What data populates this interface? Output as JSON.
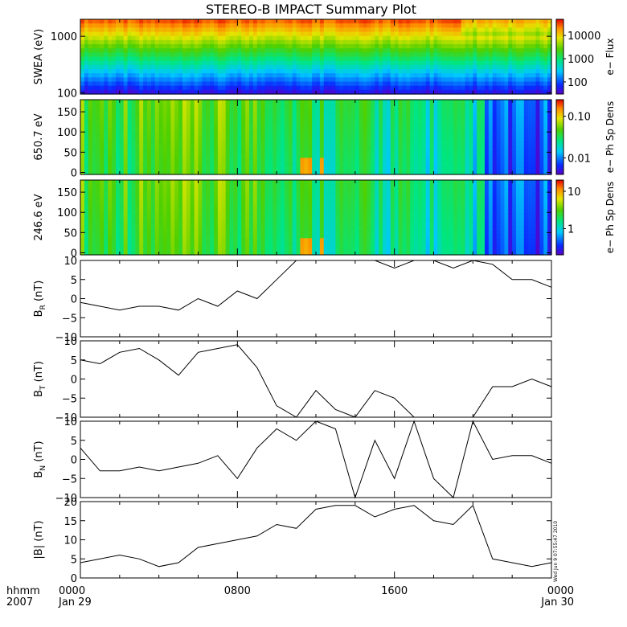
{
  "title": "STEREO-B IMPACT Summary Plot",
  "stamp": "Wed Jun 9 07:55:47 2010",
  "time_axis": {
    "row1": [
      "0000",
      "0800",
      "1600",
      "0000"
    ],
    "row2": [
      "Jan 29",
      "",
      "",
      "Jan 30"
    ],
    "corner": [
      "hhmm",
      "2007"
    ]
  },
  "chart_data": [
    {
      "id": "swea",
      "type": "heatmap",
      "ylabel": "SWEA (eV)",
      "yscale": "log",
      "ylim": [
        95,
        2000
      ],
      "yticks": [
        100,
        1000
      ],
      "yticklabels": [
        "100",
        "1000"
      ],
      "colorbar": {
        "label": "e− Flux",
        "scale": "log",
        "range": [
          30,
          50000
        ],
        "ticks": [
          100,
          1000,
          10000
        ],
        "ticklabels": [
          "100",
          "1000",
          "10000"
        ]
      }
    },
    {
      "id": "pad650",
      "type": "heatmap",
      "ylabel": "650.7 eV",
      "ylim": [
        -5,
        180
      ],
      "yticks": [
        0,
        50,
        100,
        150
      ],
      "yticklabels": [
        "0",
        "50",
        "100",
        "150"
      ],
      "colorbar": {
        "label": "e− Ph Sp Dens",
        "scale": "log",
        "range": [
          0.004,
          0.25
        ],
        "ticks": [
          0.01,
          0.1
        ],
        "ticklabels": [
          "0.01",
          "0.10"
        ]
      }
    },
    {
      "id": "pad246",
      "type": "heatmap",
      "ylabel": "246.6 eV",
      "ylim": [
        -5,
        180
      ],
      "yticks": [
        0,
        50,
        100,
        150
      ],
      "yticklabels": [
        "0",
        "50",
        "100",
        "150"
      ],
      "colorbar": {
        "label": "e− Ph Sp Dens",
        "scale": "log",
        "range": [
          0.2,
          20
        ],
        "ticks": [
          1,
          10
        ],
        "ticklabels": [
          "1",
          "10"
        ]
      }
    },
    {
      "id": "br",
      "type": "line",
      "ylabel_main": "B",
      "ylabel_sub": "R",
      "ylabel_unit": " (nT)",
      "ylim": [
        -10,
        10
      ],
      "yticks": [
        -10,
        -5,
        0,
        5,
        10
      ],
      "yticklabels": [
        "−10",
        "−5",
        "0",
        "5",
        "10"
      ],
      "x": [
        0,
        1,
        2,
        3,
        4,
        5,
        6,
        7,
        8,
        9,
        10,
        11,
        12,
        13,
        14,
        15,
        16,
        17,
        18,
        19,
        20,
        21,
        22,
        23,
        24
      ],
      "y": [
        -1,
        -2,
        -3,
        -2,
        -2,
        -3,
        0,
        -2,
        2,
        0,
        5,
        10,
        10,
        10,
        10,
        10,
        8,
        10,
        10,
        8,
        10,
        9,
        5,
        5,
        3
      ]
    },
    {
      "id": "bt",
      "type": "line",
      "ylabel_main": "B",
      "ylabel_sub": "T",
      "ylabel_unit": " (nT)",
      "ylim": [
        -10,
        10
      ],
      "yticks": [
        -10,
        -5,
        0,
        5,
        10
      ],
      "yticklabels": [
        "−10",
        "−5",
        "0",
        "5",
        "10"
      ],
      "x": [
        0,
        1,
        2,
        3,
        4,
        5,
        6,
        7,
        8,
        9,
        10,
        11,
        12,
        13,
        14,
        15,
        16,
        17,
        18,
        19,
        20,
        21,
        22,
        23,
        24
      ],
      "y": [
        5,
        4,
        7,
        8,
        5,
        1,
        7,
        8,
        9,
        3,
        -7,
        -10,
        -3,
        -8,
        -10,
        -3,
        -5,
        -10,
        -10,
        -10,
        -10,
        -2,
        -2,
        0,
        -2
      ]
    },
    {
      "id": "bn",
      "type": "line",
      "ylabel_main": "B",
      "ylabel_sub": "N",
      "ylabel_unit": " (nT)",
      "ylim": [
        -10,
        10
      ],
      "yticks": [
        -10,
        -5,
        0,
        5,
        10
      ],
      "yticklabels": [
        "−10",
        "−5",
        "0",
        "5",
        "10"
      ],
      "x": [
        0,
        1,
        2,
        3,
        4,
        5,
        6,
        7,
        8,
        9,
        10,
        11,
        12,
        13,
        14,
        15,
        16,
        17,
        18,
        19,
        20,
        21,
        22,
        23,
        24
      ],
      "y": [
        3,
        -3,
        -3,
        -2,
        -3,
        -2,
        -1,
        1,
        -5,
        3,
        8,
        5,
        10,
        8,
        -10,
        5,
        -5,
        10,
        -5,
        -10,
        10,
        0,
        1,
        1,
        -1
      ]
    },
    {
      "id": "bmag",
      "type": "line",
      "ylabel_main": "|B|",
      "ylabel_sub": "",
      "ylabel_unit": " (nT)",
      "ylim": [
        0,
        20
      ],
      "yticks": [
        0,
        5,
        10,
        15,
        20
      ],
      "yticklabels": [
        "0",
        "5",
        "10",
        "15",
        "20"
      ],
      "x": [
        0,
        1,
        2,
        3,
        4,
        5,
        6,
        7,
        8,
        9,
        10,
        11,
        12,
        13,
        14,
        15,
        16,
        17,
        18,
        19,
        20,
        21,
        22,
        23,
        24
      ],
      "y": [
        4,
        5,
        6,
        5,
        3,
        4,
        8,
        9,
        10,
        11,
        14,
        13,
        18,
        19,
        19,
        16,
        18,
        19,
        15,
        14,
        19,
        5,
        4,
        3,
        4
      ]
    }
  ]
}
